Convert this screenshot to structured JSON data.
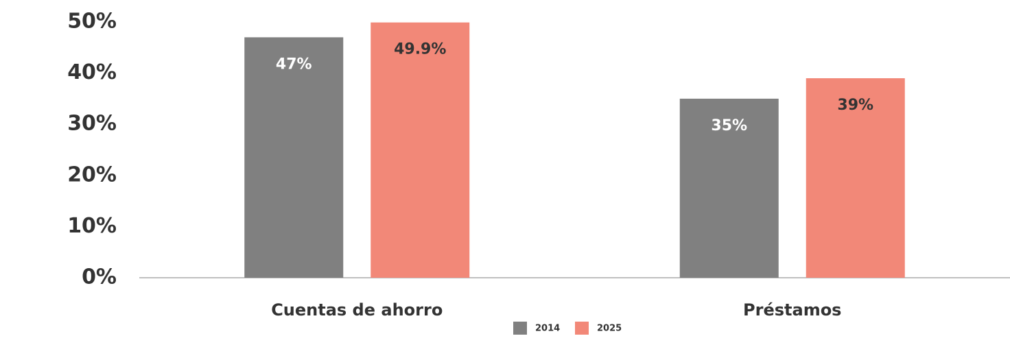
{
  "chart_data": {
    "type": "bar",
    "categories": [
      "Cuentas de ahorro",
      "Préstamos"
    ],
    "series": [
      {
        "name": "2014",
        "color": "#808080",
        "values": [
          47,
          35
        ],
        "value_labels": [
          "47%",
          "35%"
        ],
        "label_color": "#ffffff"
      },
      {
        "name": "2025",
        "color": "#f28878",
        "values": [
          49.9,
          39
        ],
        "value_labels": [
          "49.9%",
          "39%"
        ],
        "label_color": "#333333"
      }
    ],
    "ylim": [
      0,
      50
    ],
    "yticks": [
      {
        "value": 0,
        "label": "0%"
      },
      {
        "value": 10,
        "label": "10%"
      },
      {
        "value": 20,
        "label": "20%"
      },
      {
        "value": 30,
        "label": "30%"
      },
      {
        "value": 40,
        "label": "40%"
      },
      {
        "value": 50,
        "label": "50%"
      }
    ],
    "grid": false
  }
}
